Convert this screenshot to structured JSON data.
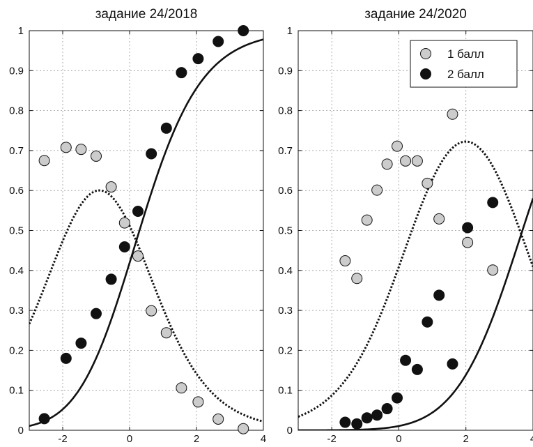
{
  "chart_data": [
    {
      "type": "scatter",
      "title": "задание 24/2018",
      "xlim": [
        -3,
        4
      ],
      "ylim": [
        0,
        1
      ],
      "xticks": [
        -2,
        0,
        2,
        4
      ],
      "yticks": [
        0,
        0.1,
        0.2,
        0.3,
        0.4,
        0.5,
        0.6,
        0.7,
        0.8,
        0.9,
        1
      ],
      "xtick_labels": [
        "-2",
        "0",
        "2",
        "4"
      ],
      "ytick_labels": [
        "0",
        "0.1",
        "0.2",
        "0.3",
        "0.4",
        "0.5",
        "0.6",
        "0.7",
        "0.8",
        "0.9",
        "1"
      ],
      "grid": true,
      "series": [
        {
          "name": "1 балл",
          "marker_color": "#cccccc",
          "points": [
            [
              -2.55,
              0.675
            ],
            [
              -1.9,
              0.708
            ],
            [
              -1.45,
              0.703
            ],
            [
              -1.0,
              0.686
            ],
            [
              -0.55,
              0.609
            ],
            [
              -0.15,
              0.519
            ],
            [
              0.25,
              0.436
            ],
            [
              0.65,
              0.299
            ],
            [
              1.1,
              0.244
            ],
            [
              1.55,
              0.106
            ],
            [
              2.05,
              0.071
            ],
            [
              2.65,
              0.028
            ],
            [
              3.4,
              0.004
            ]
          ],
          "fit": {
            "kind": "nominal",
            "style": "dotted",
            "b1": -2.0,
            "b2": 0.2
          }
        },
        {
          "name": "2 балл",
          "marker_color": "#111111",
          "points": [
            [
              -2.55,
              0.029
            ],
            [
              -1.9,
              0.18
            ],
            [
              -1.45,
              0.218
            ],
            [
              -1.0,
              0.292
            ],
            [
              -0.55,
              0.378
            ],
            [
              -0.15,
              0.459
            ],
            [
              0.25,
              0.548
            ],
            [
              0.65,
              0.692
            ],
            [
              1.1,
              0.756
            ],
            [
              1.55,
              0.895
            ],
            [
              2.05,
              0.93
            ],
            [
              2.65,
              0.973
            ],
            [
              3.4,
              1.0
            ]
          ],
          "fit": {
            "kind": "nominal",
            "style": "solid",
            "b1": -2.0,
            "b2": 0.2
          }
        }
      ]
    },
    {
      "type": "scatter",
      "title": "задание 24/2020",
      "xlim": [
        -3,
        4
      ],
      "ylim": [
        0,
        1
      ],
      "xticks": [
        -2,
        0,
        2,
        4
      ],
      "yticks": [
        0,
        0.1,
        0.2,
        0.3,
        0.4,
        0.5,
        0.6,
        0.7,
        0.8,
        0.9,
        1
      ],
      "xtick_labels": [
        "-2",
        "0",
        "2",
        "4"
      ],
      "ytick_labels": [
        "0",
        "0.1",
        "0.2",
        "0.3",
        "0.4",
        "0.5",
        "0.6",
        "0.7",
        "0.8",
        "0.9",
        "1"
      ],
      "grid": true,
      "legend": {
        "position": "top-right",
        "entries": [
          "1 балл",
          "2 балл"
        ]
      },
      "series": [
        {
          "name": "1 балл",
          "marker_color": "#cccccc",
          "points": [
            [
              -1.6,
              0.424
            ],
            [
              -1.25,
              0.38
            ],
            [
              -0.95,
              0.526
            ],
            [
              -0.65,
              0.601
            ],
            [
              -0.35,
              0.666
            ],
            [
              -0.05,
              0.711
            ],
            [
              0.2,
              0.674
            ],
            [
              0.55,
              0.674
            ],
            [
              0.85,
              0.618
            ],
            [
              1.2,
              0.529
            ],
            [
              1.6,
              0.791
            ],
            [
              2.05,
              0.47
            ],
            [
              2.8,
              0.401
            ]
          ],
          "fit": {
            "kind": "nominal",
            "style": "dotted",
            "b1": 0.35,
            "b2": 3.65
          }
        },
        {
          "name": "2 балл",
          "marker_color": "#111111",
          "points": [
            [
              -1.6,
              0.02
            ],
            [
              -1.25,
              0.016
            ],
            [
              -0.95,
              0.031
            ],
            [
              -0.65,
              0.038
            ],
            [
              -0.35,
              0.054
            ],
            [
              -0.05,
              0.081
            ],
            [
              0.2,
              0.175
            ],
            [
              0.55,
              0.152
            ],
            [
              0.85,
              0.271
            ],
            [
              1.2,
              0.338
            ],
            [
              1.6,
              0.166
            ],
            [
              2.05,
              0.507
            ],
            [
              2.8,
              0.57
            ]
          ],
          "fit": {
            "kind": "nominal",
            "style": "solid",
            "b1": 0.35,
            "b2": 3.65
          }
        }
      ]
    }
  ]
}
